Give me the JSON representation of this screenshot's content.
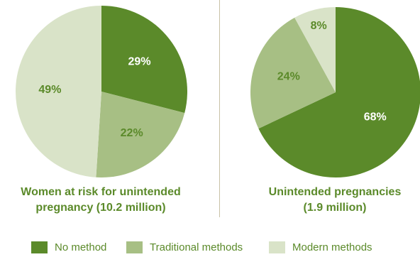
{
  "chart_data": [
    {
      "type": "pie",
      "title_lines": [
        "Women at risk for unintended",
        "pregnancy (10.2 million)"
      ],
      "categories": [
        "No method",
        "Traditional methods",
        "Modern methods"
      ],
      "values": [
        29,
        22,
        49
      ],
      "labels": [
        "29%",
        "22%",
        "49%"
      ]
    },
    {
      "type": "pie",
      "title_lines": [
        "Unintended pregnancies",
        "(1.9 million)"
      ],
      "categories": [
        "No method",
        "Traditional methods",
        "Modern methods"
      ],
      "values": [
        68,
        24,
        8
      ],
      "labels": [
        "68%",
        "24%",
        "8%"
      ]
    }
  ],
  "legend": [
    {
      "label": "No method",
      "color": "#5b8a2a"
    },
    {
      "label": "Traditional methods",
      "color": "#a7bf84"
    },
    {
      "label": "Modern methods",
      "color": "#d9e3c8"
    }
  ],
  "colors": {
    "no_method": "#5b8a2a",
    "traditional": "#a7bf84",
    "modern": "#d9e3c8",
    "label_on_dark": "#ffffff",
    "label_on_light": "#5b8a2a",
    "divider": "#c9c2a6"
  }
}
